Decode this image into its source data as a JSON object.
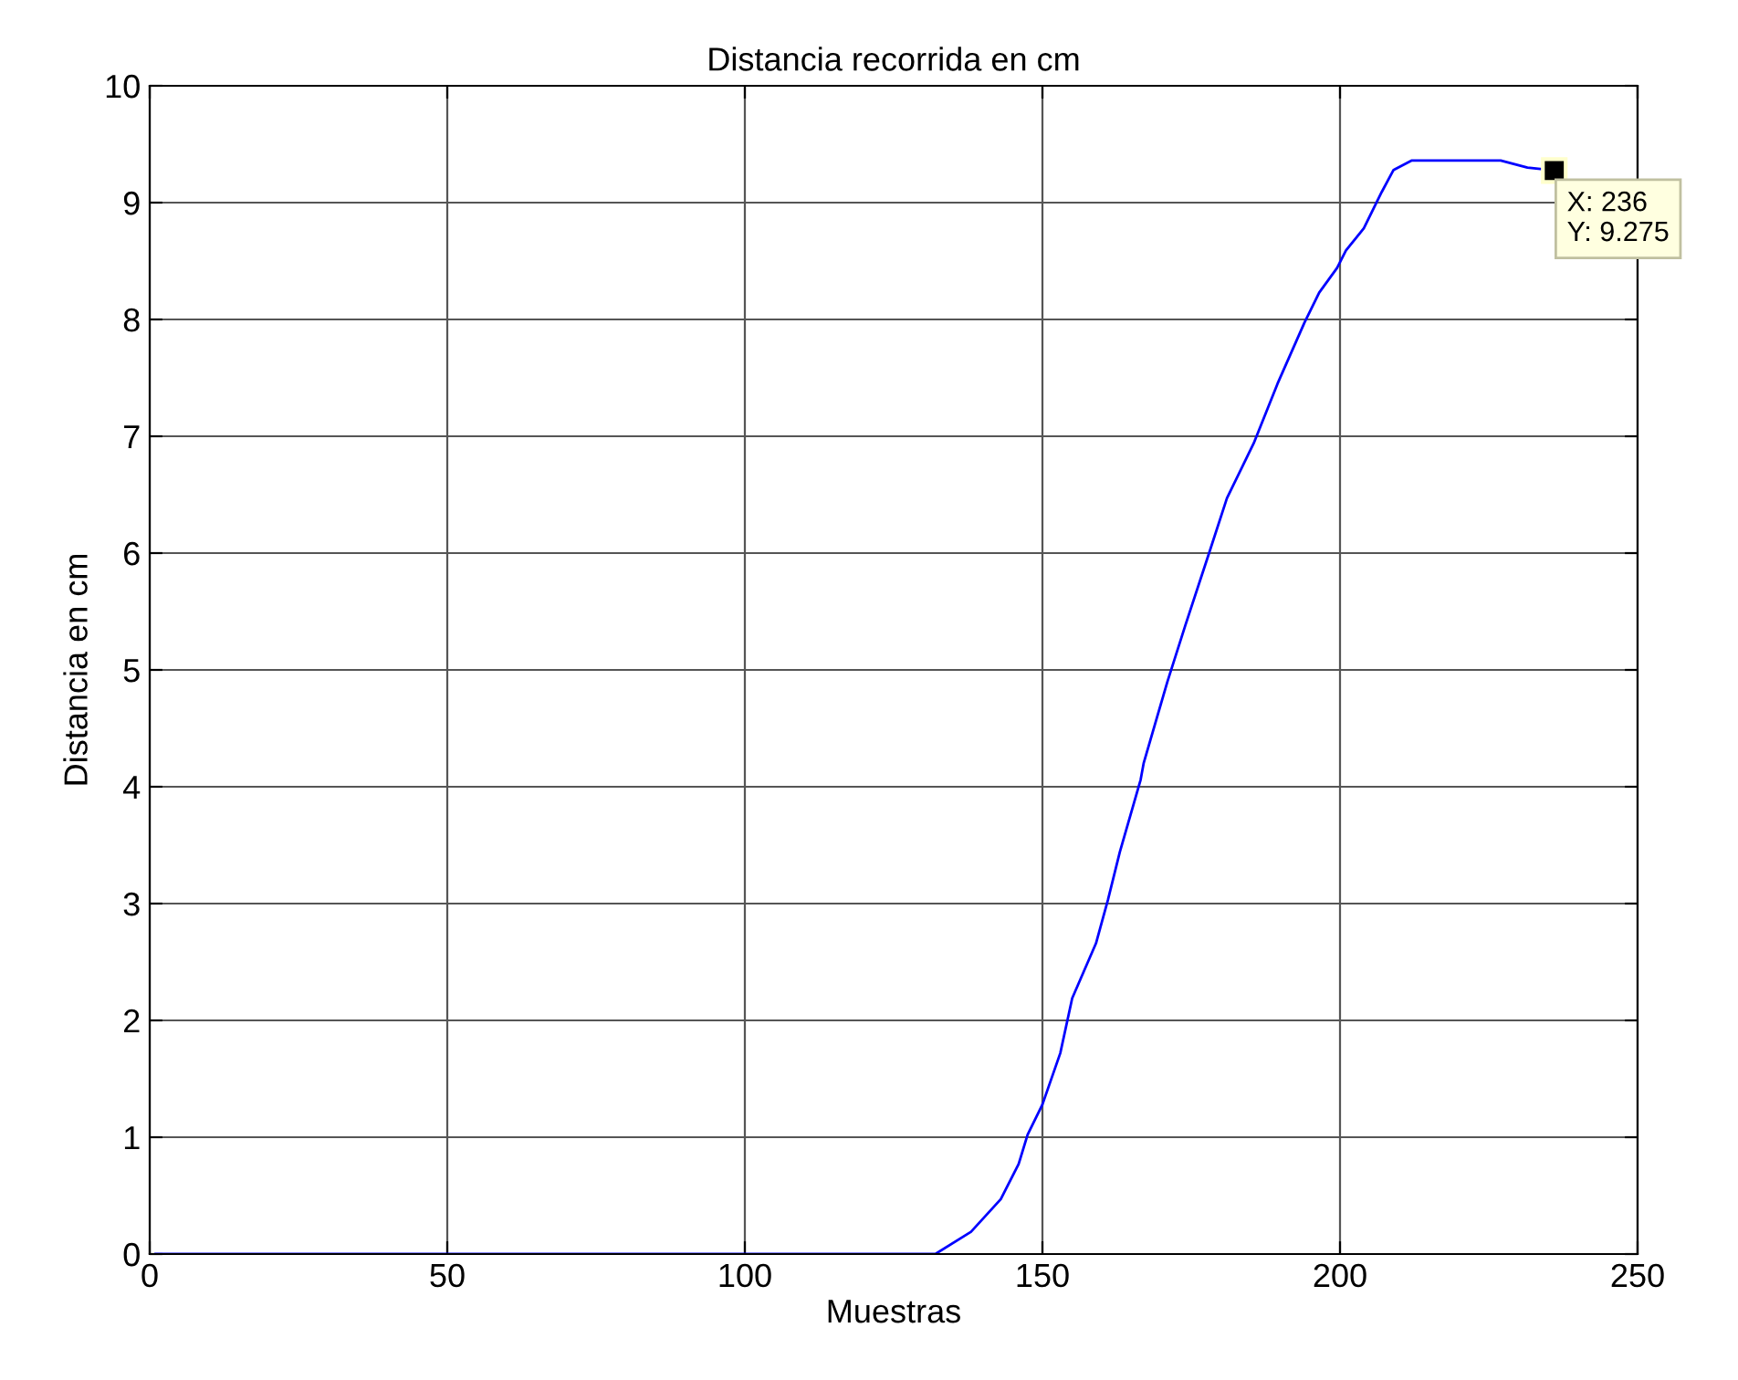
{
  "chart_data": {
    "type": "line",
    "title": "Distancia recorrida en cm",
    "xlabel": "Muestras",
    "ylabel": "Distancia en cm",
    "series": [
      {
        "color": "#0000ff",
        "x": [
          1,
          50,
          100,
          132,
          138,
          143,
          146,
          147.5,
          150,
          153,
          155,
          159,
          161,
          163,
          166.5,
          167,
          171,
          174,
          178,
          181,
          185.5,
          189.5,
          194,
          196.5,
          199.5,
          201,
          204,
          207,
          209,
          212,
          227,
          231.5,
          236
        ],
        "values": [
          0,
          0,
          0,
          0,
          0.19,
          0.47,
          0.77,
          1.02,
          1.28,
          1.72,
          2.19,
          2.66,
          3.03,
          3.44,
          4.06,
          4.2,
          4.9,
          5.38,
          6.0,
          6.47,
          6.94,
          7.45,
          7.97,
          8.23,
          8.44,
          8.59,
          8.78,
          9.09,
          9.28,
          9.36,
          9.36,
          9.3,
          9.275
        ]
      }
    ],
    "annotations": [
      {
        "text": "X: 236\nY: 9.275",
        "x": 236,
        "y": 9.275
      }
    ],
    "xlim": [
      0,
      250
    ],
    "xticks": [
      0,
      50,
      100,
      150,
      200,
      250
    ],
    "ylim": [
      0,
      10
    ],
    "yticks": [
      0,
      1,
      2,
      3,
      4,
      5,
      6,
      7,
      8,
      9,
      10
    ],
    "grid": true,
    "legend": false,
    "marker": "none",
    "line_style": "solid"
  }
}
